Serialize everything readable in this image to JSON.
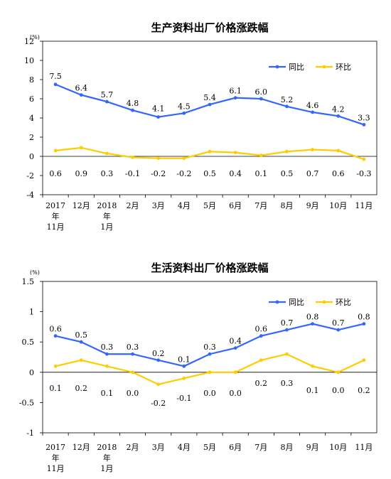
{
  "chart_data": [
    {
      "type": "line",
      "title": "生产资料出厂价格涨跌幅",
      "unit": "(%)",
      "categories": [
        [
          "2017",
          "年",
          "11月"
        ],
        [
          "12月"
        ],
        [
          "2018",
          "年",
          "1月"
        ],
        [
          "2月"
        ],
        [
          "3月"
        ],
        [
          "4月"
        ],
        [
          "5月"
        ],
        [
          "6月"
        ],
        [
          "7月"
        ],
        [
          "8月"
        ],
        [
          "9月"
        ],
        [
          "10月"
        ],
        [
          "11月"
        ]
      ],
      "yticks": [
        "12",
        "10",
        "8",
        "6",
        "4",
        "2",
        "0",
        "-2",
        "-4"
      ],
      "ylim": [
        -4,
        12
      ],
      "grid": false,
      "legend_position": "top-right",
      "series": [
        {
          "name": "同比",
          "color": "#3366ff",
          "values": [
            7.5,
            6.4,
            5.7,
            4.8,
            4.1,
            4.5,
            5.4,
            6.1,
            6.0,
            5.2,
            4.6,
            4.2,
            3.3
          ],
          "labels": [
            "7.5",
            "6.4",
            "5.7",
            "4.8",
            "4.1",
            "4.5",
            "5.4",
            "6.1",
            "6.0",
            "5.2",
            "4.6",
            "4.2",
            "3.3"
          ]
        },
        {
          "name": "环比",
          "color": "#ffcc00",
          "values": [
            0.6,
            0.9,
            0.3,
            -0.1,
            -0.2,
            -0.2,
            0.5,
            0.4,
            0.1,
            0.5,
            0.7,
            0.6,
            -0.3
          ],
          "labels": [
            "0.6",
            "0.9",
            "0.3",
            "-0.1",
            "-0.2",
            "-0.2",
            "0.5",
            "0.4",
            "0.1",
            "0.5",
            "0.7",
            "0.6",
            "-0.3"
          ]
        }
      ]
    },
    {
      "type": "line",
      "title": "生活资料出厂价格涨跌幅",
      "unit": "(%)",
      "categories": [
        [
          "2017",
          "年",
          "11月"
        ],
        [
          "12月"
        ],
        [
          "2018",
          "年",
          "1月"
        ],
        [
          "2月"
        ],
        [
          "3月"
        ],
        [
          "4月"
        ],
        [
          "5月"
        ],
        [
          "6月"
        ],
        [
          "7月"
        ],
        [
          "8月"
        ],
        [
          "9月"
        ],
        [
          "10月"
        ],
        [
          "11月"
        ]
      ],
      "yticks": [
        "1.5",
        "1",
        "0.5",
        "0",
        "-0.5",
        "-1"
      ],
      "ylim": [
        -1,
        1.5
      ],
      "grid": false,
      "legend_position": "top-right",
      "series": [
        {
          "name": "同比",
          "color": "#3366ff",
          "values": [
            0.6,
            0.5,
            0.3,
            0.3,
            0.2,
            0.1,
            0.3,
            0.4,
            0.6,
            0.7,
            0.8,
            0.7,
            0.8
          ],
          "labels": [
            "0.6",
            "0.5",
            "0.3",
            "0.3",
            "0.2",
            "0.1",
            "0.3",
            "0.4",
            "0.6",
            "0.7",
            "0.8",
            "0.7",
            "0.8"
          ]
        },
        {
          "name": "环比",
          "color": "#ffcc00",
          "values": [
            0.1,
            0.2,
            0.1,
            0.0,
            -0.2,
            -0.1,
            0.0,
            0.0,
            0.2,
            0.3,
            0.1,
            0.0,
            0.2
          ],
          "labels": [
            "0.1",
            "0.2",
            "0.1",
            "0.0",
            "-0.2",
            "-0.1",
            "0.0",
            "0.0",
            "0.2",
            "0.3",
            "0.1",
            "0.0",
            "0.2"
          ]
        }
      ]
    }
  ]
}
